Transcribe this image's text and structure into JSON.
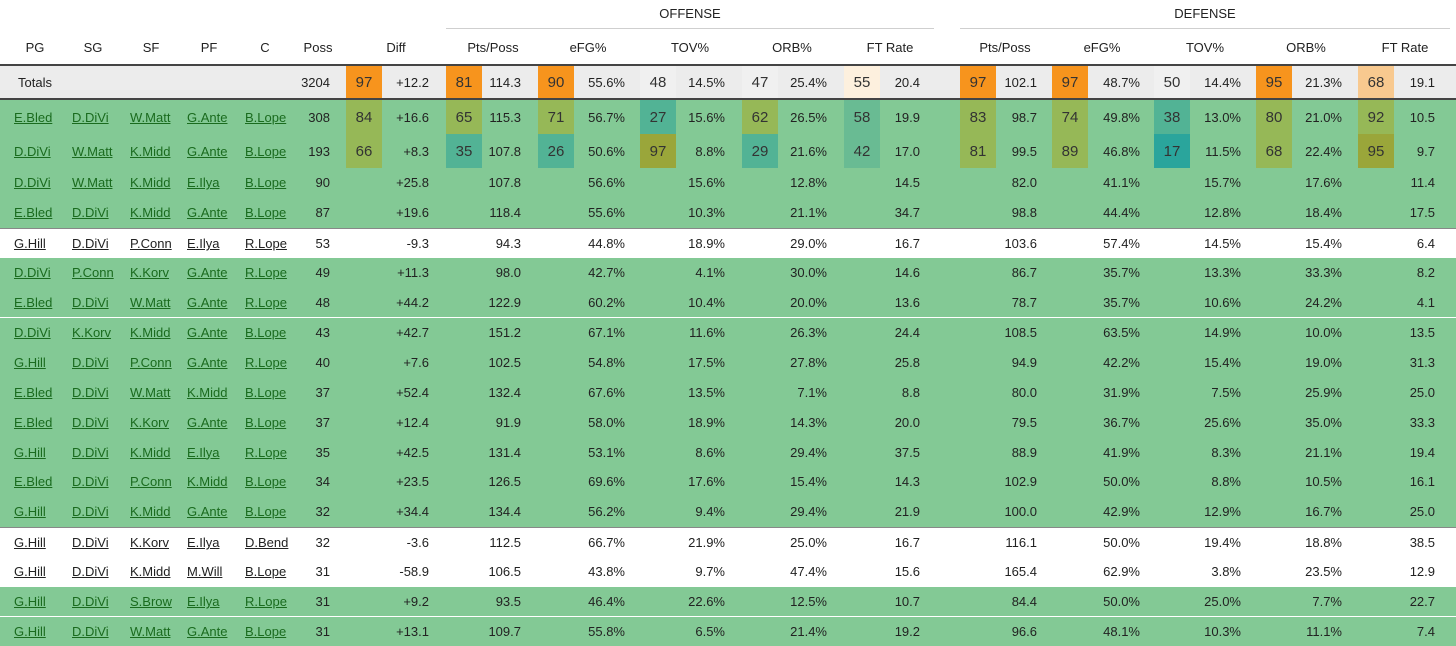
{
  "groups": {
    "offense": "OFFENSE",
    "defense": "DEFENSE"
  },
  "headers": [
    "PG",
    "SG",
    "SF",
    "PF",
    "C",
    "Poss",
    "Diff",
    "Pts/Poss",
    "eFG%",
    "TOV%",
    "ORB%",
    "FT Rate",
    "Pts/Poss",
    "eFG%",
    "TOV%",
    "ORB%",
    "FT Rate"
  ],
  "colors": {
    "orange": "#f7941d",
    "lightorange": "#f8c98f",
    "paleorange": "#fdf0de",
    "olive": "#9aa63a",
    "oliveLight": "#96b857",
    "teal": "#52b395",
    "tealMid": "#69bb93",
    "tealDark": "#2aa59c",
    "palegray": "#f0f0f0",
    "green": "#83c995"
  },
  "totals": {
    "label": "Totals",
    "poss": "3204",
    "diff_badge": "97",
    "diff": "+12.2",
    "o_pts_badge": "81",
    "o_pts": "114.3",
    "o_efg_badge": "90",
    "o_efg": "55.6%",
    "o_tov_badge": "48",
    "o_tov": "14.5%",
    "o_orb_badge": "47",
    "o_orb": "25.4%",
    "o_ft_badge": "55",
    "o_ft": "20.4",
    "d_pts_badge": "97",
    "d_pts": "102.1",
    "d_efg_badge": "97",
    "d_efg": "48.7%",
    "d_tov_badge": "50",
    "d_tov": "14.4%",
    "d_orb_badge": "95",
    "d_orb": "21.3%",
    "d_ft_badge": "68",
    "d_ft": "19.1"
  },
  "badge_rows": [
    {
      "pg": "E.Bled",
      "sg": "D.DiVi",
      "sf": "W.Matt",
      "pf": "G.Ante",
      "c": "B.Lope",
      "poss": "308",
      "diff_badge": "84",
      "diff": "+16.6",
      "o_pts_badge": "65",
      "o_pts": "115.3",
      "o_efg_badge": "71",
      "o_efg": "56.7%",
      "o_tov_badge": "27",
      "o_tov": "15.6%",
      "o_orb_badge": "62",
      "o_orb": "26.5%",
      "o_ft_badge": "58",
      "o_ft": "19.9",
      "d_pts_badge": "83",
      "d_pts": "98.7",
      "d_efg_badge": "74",
      "d_efg": "49.8%",
      "d_tov_badge": "38",
      "d_tov": "13.0%",
      "d_orb_badge": "80",
      "d_orb": "21.0%",
      "d_ft_badge": "92",
      "d_ft": "10.5"
    },
    {
      "pg": "D.DiVi",
      "sg": "W.Matt",
      "sf": "K.Midd",
      "pf": "G.Ante",
      "c": "B.Lope",
      "poss": "193",
      "diff_badge": "66",
      "diff": "+8.3",
      "o_pts_badge": "35",
      "o_pts": "107.8",
      "o_efg_badge": "26",
      "o_efg": "50.6%",
      "o_tov_badge": "97",
      "o_tov": "8.8%",
      "o_orb_badge": "29",
      "o_orb": "21.6%",
      "o_ft_badge": "42",
      "o_ft": "17.0",
      "d_pts_badge": "81",
      "d_pts": "99.5",
      "d_efg_badge": "89",
      "d_efg": "46.8%",
      "d_tov_badge": "17",
      "d_tov": "11.5%",
      "d_orb_badge": "68",
      "d_orb": "22.4%",
      "d_ft_badge": "95",
      "d_ft": "9.7"
    }
  ],
  "rows": [
    {
      "pg": "D.DiVi",
      "sg": "W.Matt",
      "sf": "K.Midd",
      "pf": "E.Ilya",
      "c": "B.Lope",
      "poss": "90",
      "diff": "+25.8",
      "o_pts": "107.8",
      "o_efg": "56.6%",
      "o_tov": "15.6%",
      "o_orb": "12.8%",
      "o_ft": "14.5",
      "d_pts": "82.0",
      "d_efg": "41.1%",
      "d_tov": "15.7%",
      "d_orb": "17.6%",
      "d_ft": "11.4",
      "bg": "green"
    },
    {
      "pg": "E.Bled",
      "sg": "D.DiVi",
      "sf": "K.Midd",
      "pf": "G.Ante",
      "c": "B.Lope",
      "poss": "87",
      "diff": "+19.6",
      "o_pts": "118.4",
      "o_efg": "55.6%",
      "o_tov": "10.3%",
      "o_orb": "21.1%",
      "o_ft": "34.7",
      "d_pts": "98.8",
      "d_efg": "44.4%",
      "d_tov": "12.8%",
      "d_orb": "18.4%",
      "d_ft": "17.5",
      "bg": "green"
    },
    {
      "pg": "G.Hill",
      "sg": "D.DiVi",
      "sf": "P.Conn",
      "pf": "E.Ilya",
      "c": "R.Lope",
      "poss": "53",
      "diff": "-9.3",
      "o_pts": "94.3",
      "o_efg": "44.8%",
      "o_tov": "18.9%",
      "o_orb": "29.0%",
      "o_ft": "16.7",
      "d_pts": "103.6",
      "d_efg": "57.4%",
      "d_tov": "14.5%",
      "d_orb": "15.4%",
      "d_ft": "6.4",
      "bg": "white"
    },
    {
      "pg": "D.DiVi",
      "sg": "P.Conn",
      "sf": "K.Korv",
      "pf": "G.Ante",
      "c": "R.Lope",
      "poss": "49",
      "diff": "+11.3",
      "o_pts": "98.0",
      "o_efg": "42.7%",
      "o_tov": "4.1%",
      "o_orb": "30.0%",
      "o_ft": "14.6",
      "d_pts": "86.7",
      "d_efg": "35.7%",
      "d_tov": "13.3%",
      "d_orb": "33.3%",
      "d_ft": "8.2",
      "bg": "green"
    },
    {
      "pg": "E.Bled",
      "sg": "D.DiVi",
      "sf": "W.Matt",
      "pf": "G.Ante",
      "c": "R.Lope",
      "poss": "48",
      "diff": "+44.2",
      "o_pts": "122.9",
      "o_efg": "60.2%",
      "o_tov": "10.4%",
      "o_orb": "20.0%",
      "o_ft": "13.6",
      "d_pts": "78.7",
      "d_efg": "35.7%",
      "d_tov": "10.6%",
      "d_orb": "24.2%",
      "d_ft": "4.1",
      "bg": "green"
    },
    {
      "pg": "D.DiVi",
      "sg": "K.Korv",
      "sf": "K.Midd",
      "pf": "G.Ante",
      "c": "B.Lope",
      "poss": "43",
      "diff": "+42.7",
      "o_pts": "151.2",
      "o_efg": "67.1%",
      "o_tov": "11.6%",
      "o_orb": "26.3%",
      "o_ft": "24.4",
      "d_pts": "108.5",
      "d_efg": "63.5%",
      "d_tov": "14.9%",
      "d_orb": "10.0%",
      "d_ft": "13.5",
      "bg": "green"
    },
    {
      "pg": "G.Hill",
      "sg": "D.DiVi",
      "sf": "P.Conn",
      "pf": "G.Ante",
      "c": "R.Lope",
      "poss": "40",
      "diff": "+7.6",
      "o_pts": "102.5",
      "o_efg": "54.8%",
      "o_tov": "17.5%",
      "o_orb": "27.8%",
      "o_ft": "25.8",
      "d_pts": "94.9",
      "d_efg": "42.2%",
      "d_tov": "15.4%",
      "d_orb": "19.0%",
      "d_ft": "31.3",
      "bg": "green"
    },
    {
      "pg": "E.Bled",
      "sg": "D.DiVi",
      "sf": "W.Matt",
      "pf": "K.Midd",
      "c": "B.Lope",
      "poss": "37",
      "diff": "+52.4",
      "o_pts": "132.4",
      "o_efg": "67.6%",
      "o_tov": "13.5%",
      "o_orb": "7.1%",
      "o_ft": "8.8",
      "d_pts": "80.0",
      "d_efg": "31.9%",
      "d_tov": "7.5%",
      "d_orb": "25.9%",
      "d_ft": "25.0",
      "bg": "green"
    },
    {
      "pg": "E.Bled",
      "sg": "D.DiVi",
      "sf": "K.Korv",
      "pf": "G.Ante",
      "c": "B.Lope",
      "poss": "37",
      "diff": "+12.4",
      "o_pts": "91.9",
      "o_efg": "58.0%",
      "o_tov": "18.9%",
      "o_orb": "14.3%",
      "o_ft": "20.0",
      "d_pts": "79.5",
      "d_efg": "36.7%",
      "d_tov": "25.6%",
      "d_orb": "35.0%",
      "d_ft": "33.3",
      "bg": "green"
    },
    {
      "pg": "G.Hill",
      "sg": "D.DiVi",
      "sf": "K.Midd",
      "pf": "E.Ilya",
      "c": "R.Lope",
      "poss": "35",
      "diff": "+42.5",
      "o_pts": "131.4",
      "o_efg": "53.1%",
      "o_tov": "8.6%",
      "o_orb": "29.4%",
      "o_ft": "37.5",
      "d_pts": "88.9",
      "d_efg": "41.9%",
      "d_tov": "8.3%",
      "d_orb": "21.1%",
      "d_ft": "19.4",
      "bg": "green"
    },
    {
      "pg": "E.Bled",
      "sg": "D.DiVi",
      "sf": "P.Conn",
      "pf": "K.Midd",
      "c": "B.Lope",
      "poss": "34",
      "diff": "+23.5",
      "o_pts": "126.5",
      "o_efg": "69.6%",
      "o_tov": "17.6%",
      "o_orb": "15.4%",
      "o_ft": "14.3",
      "d_pts": "102.9",
      "d_efg": "50.0%",
      "d_tov": "8.8%",
      "d_orb": "10.5%",
      "d_ft": "16.1",
      "bg": "green"
    },
    {
      "pg": "G.Hill",
      "sg": "D.DiVi",
      "sf": "K.Midd",
      "pf": "G.Ante",
      "c": "B.Lope",
      "poss": "32",
      "diff": "+34.4",
      "o_pts": "134.4",
      "o_efg": "56.2%",
      "o_tov": "9.4%",
      "o_orb": "29.4%",
      "o_ft": "21.9",
      "d_pts": "100.0",
      "d_efg": "42.9%",
      "d_tov": "12.9%",
      "d_orb": "16.7%",
      "d_ft": "25.0",
      "bg": "green"
    },
    {
      "pg": "G.Hill",
      "sg": "D.DiVi",
      "sf": "K.Korv",
      "pf": "E.Ilya",
      "c": "D.Bend",
      "poss": "32",
      "diff": "-3.6",
      "o_pts": "112.5",
      "o_efg": "66.7%",
      "o_tov": "21.9%",
      "o_orb": "25.0%",
      "o_ft": "16.7",
      "d_pts": "116.1",
      "d_efg": "50.0%",
      "d_tov": "19.4%",
      "d_orb": "18.8%",
      "d_ft": "38.5",
      "bg": "white"
    },
    {
      "pg": "G.Hill",
      "sg": "D.DiVi",
      "sf": "K.Midd",
      "pf": "M.Will",
      "c": "B.Lope",
      "poss": "31",
      "diff": "-58.9",
      "o_pts": "106.5",
      "o_efg": "43.8%",
      "o_tov": "9.7%",
      "o_orb": "47.4%",
      "o_ft": "15.6",
      "d_pts": "165.4",
      "d_efg": "62.9%",
      "d_tov": "3.8%",
      "d_orb": "23.5%",
      "d_ft": "12.9",
      "bg": "white"
    },
    {
      "pg": "G.Hill",
      "sg": "D.DiVi",
      "sf": "S.Brow",
      "pf": "E.Ilya",
      "c": "R.Lope",
      "poss": "31",
      "diff": "+9.2",
      "o_pts": "93.5",
      "o_efg": "46.4%",
      "o_tov": "22.6%",
      "o_orb": "12.5%",
      "o_ft": "10.7",
      "d_pts": "84.4",
      "d_efg": "50.0%",
      "d_tov": "25.0%",
      "d_orb": "7.7%",
      "d_ft": "22.7",
      "bg": "green"
    },
    {
      "pg": "G.Hill",
      "sg": "D.DiVi",
      "sf": "W.Matt",
      "pf": "G.Ante",
      "c": "B.Lope",
      "poss": "31",
      "diff": "+13.1",
      "o_pts": "109.7",
      "o_efg": "55.8%",
      "o_tov": "6.5%",
      "o_orb": "21.4%",
      "o_ft": "19.2",
      "d_pts": "96.6",
      "d_efg": "48.1%",
      "d_tov": "10.3%",
      "d_orb": "11.1%",
      "d_ft": "7.4",
      "bg": "green"
    }
  ]
}
